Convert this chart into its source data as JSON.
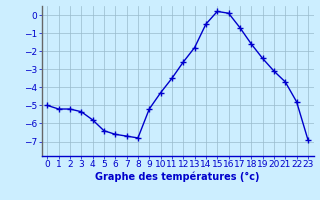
{
  "x": [
    0,
    1,
    2,
    3,
    4,
    5,
    6,
    7,
    8,
    9,
    10,
    11,
    12,
    13,
    14,
    15,
    16,
    17,
    18,
    19,
    20,
    21,
    22,
    23
  ],
  "y": [
    -5.0,
    -5.2,
    -5.2,
    -5.35,
    -5.8,
    -6.4,
    -6.6,
    -6.7,
    -6.8,
    -5.2,
    -4.3,
    -3.5,
    -2.6,
    -1.8,
    -0.5,
    0.2,
    0.1,
    -0.7,
    -1.6,
    -2.4,
    -3.1,
    -3.7,
    -4.8,
    -6.9
  ],
  "line_color": "#0000cc",
  "marker": "+",
  "markersize": 4,
  "linewidth": 1.0,
  "bg_color": "#cceeff",
  "grid_color": "#99bbcc",
  "xlabel": "Graphe des températures (°c)",
  "xlabel_fontsize": 7,
  "tick_fontsize": 6.5,
  "ylim": [
    -7.8,
    0.5
  ],
  "yticks": [
    0,
    -1,
    -2,
    -3,
    -4,
    -5,
    -6,
    -7
  ],
  "xlim": [
    -0.5,
    23.5
  ],
  "xticks": [
    0,
    1,
    2,
    3,
    4,
    5,
    6,
    7,
    8,
    9,
    10,
    11,
    12,
    13,
    14,
    15,
    16,
    17,
    18,
    19,
    20,
    21,
    22,
    23
  ]
}
